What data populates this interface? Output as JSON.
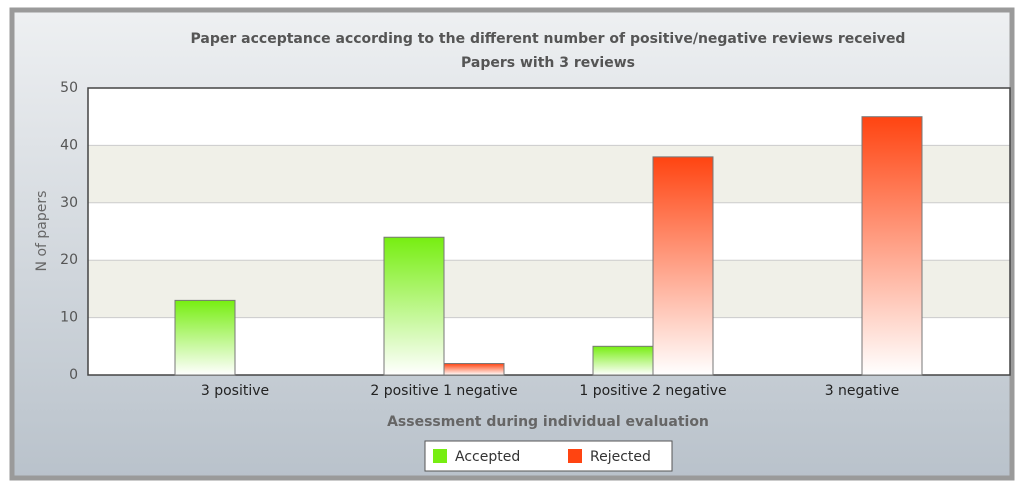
{
  "chart_data": {
    "type": "bar",
    "title": "Paper acceptance according to the different number of positive/negative reviews received",
    "subtitle": "Papers with 3 reviews",
    "x_label": "Assessment during individual evaluation",
    "y_label": "N of papers",
    "categories": [
      "3 positive",
      "2 positive 1 negative",
      "1 positive 2 negative",
      "3 negative"
    ],
    "series": [
      {
        "name": "Accepted",
        "color": "#77ee11",
        "values": [
          13,
          24,
          5,
          0
        ]
      },
      {
        "name": "Rejected",
        "color": "#ff4411",
        "values": [
          0,
          2,
          38,
          45
        ]
      }
    ],
    "ylim": [
      0,
      50
    ],
    "yticks": [
      0,
      10,
      20,
      30,
      40,
      50
    ],
    "grid": true,
    "legend": "bottom"
  }
}
